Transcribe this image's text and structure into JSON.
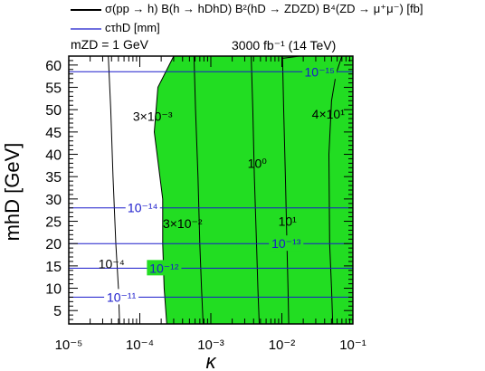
{
  "legend": {
    "black_label": "σ(pp → h) B(h → hDhD) B²(hD → ZDZD) B⁴(ZD → μ⁺μ⁻) [fb]",
    "blue_label": "cτhD [mm]"
  },
  "annotations": {
    "mass_label": "mZD = 1 GeV",
    "lumi_label": "3000 fb⁻¹ (14 TeV)"
  },
  "colors": {
    "excluded": "#22dd22",
    "contour_black": "#000000",
    "contour_blue": "#1a1acc"
  },
  "chart_data": {
    "type": "area",
    "xlabel": "κ",
    "ylabel": "mhD [GeV]",
    "x_scale": "log",
    "xlim": [
      1e-05,
      0.1
    ],
    "ylim": [
      2,
      62
    ],
    "x_ticks": [
      1e-05,
      0.0001,
      0.001,
      0.01,
      0.1
    ],
    "x_tick_labels": [
      "10⁻⁵",
      "10⁻⁴",
      "10⁻³",
      "10⁻²",
      "10⁻¹"
    ],
    "y_ticks": [
      5,
      10,
      15,
      20,
      25,
      30,
      35,
      40,
      45,
      50,
      55,
      60
    ],
    "y_tick_labels": [
      "5",
      "10",
      "15",
      "20",
      "25",
      "30",
      "35",
      "40",
      "45",
      "50",
      "55",
      "60"
    ],
    "excluded_region_boundary": [
      {
        "x": 0.00024,
        "y": 2
      },
      {
        "x": 0.00022,
        "y": 10
      },
      {
        "x": 0.00021,
        "y": 20
      },
      {
        "x": 0.00021,
        "y": 30
      },
      {
        "x": 0.00016,
        "y": 45
      },
      {
        "x": 0.00018,
        "y": 55
      },
      {
        "x": 0.0003,
        "y": 62
      }
    ],
    "cross_section_contours": [
      {
        "label": "10⁻⁴",
        "points": [
          {
            "x": 5.2e-05,
            "y": 2
          },
          {
            "x": 5e-05,
            "y": 10
          },
          {
            "x": 4.6e-05,
            "y": 20
          },
          {
            "x": 4.2e-05,
            "y": 35
          },
          {
            "x": 3.9e-05,
            "y": 50
          },
          {
            "x": 3.6e-05,
            "y": 62
          }
        ]
      },
      {
        "label": "3×10⁻³",
        "points": [
          {
            "x": 0.00024,
            "y": 2
          },
          {
            "x": 0.00022,
            "y": 10
          },
          {
            "x": 0.00021,
            "y": 20
          },
          {
            "x": 0.00021,
            "y": 30
          },
          {
            "x": 0.00016,
            "y": 45
          },
          {
            "x": 0.00018,
            "y": 55
          },
          {
            "x": 0.0003,
            "y": 62
          }
        ]
      },
      {
        "label": "3×10⁻²",
        "points": [
          {
            "x": 0.00078,
            "y": 2
          },
          {
            "x": 0.00074,
            "y": 10
          },
          {
            "x": 0.0007,
            "y": 20
          },
          {
            "x": 0.00066,
            "y": 35
          },
          {
            "x": 0.00061,
            "y": 50
          },
          {
            "x": 0.00058,
            "y": 62
          }
        ]
      },
      {
        "label": "10⁰",
        "points": [
          {
            "x": 0.0048,
            "y": 2
          },
          {
            "x": 0.0046,
            "y": 10
          },
          {
            "x": 0.0044,
            "y": 20
          },
          {
            "x": 0.0041,
            "y": 35
          },
          {
            "x": 0.0039,
            "y": 50
          },
          {
            "x": 0.0037,
            "y": 62
          }
        ]
      },
      {
        "label": "10¹",
        "points": [
          {
            "x": 0.0125,
            "y": 2
          },
          {
            "x": 0.0122,
            "y": 10
          },
          {
            "x": 0.0118,
            "y": 20
          },
          {
            "x": 0.0112,
            "y": 35
          },
          {
            "x": 0.0106,
            "y": 50
          },
          {
            "x": 0.0102,
            "y": 62
          }
        ]
      },
      {
        "label": "4×10¹",
        "points": [
          {
            "x": 0.052,
            "y": 2
          },
          {
            "x": 0.05,
            "y": 10
          },
          {
            "x": 0.047,
            "y": 20
          },
          {
            "x": 0.046,
            "y": 40
          },
          {
            "x": 0.05,
            "y": 52
          },
          {
            "x": 0.058,
            "y": 58
          },
          {
            "x": 0.07,
            "y": 62
          }
        ]
      },
      {
        "label": "",
        "points": [
          {
            "x": 0.01,
            "y": 61.5
          },
          {
            "x": 0.018,
            "y": 62
          }
        ]
      }
    ],
    "lifetime_contours": [
      {
        "label": "10⁻¹¹",
        "y": 8
      },
      {
        "label": "10⁻¹²",
        "y": 14.5
      },
      {
        "label": "10⁻¹³",
        "y": 20
      },
      {
        "label": "10⁻¹⁴",
        "y": 28
      },
      {
        "label": "10⁻¹⁵",
        "y": 58.5
      }
    ]
  }
}
